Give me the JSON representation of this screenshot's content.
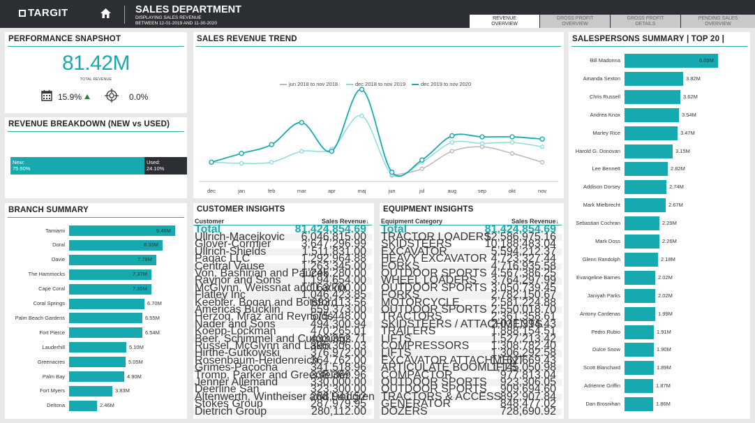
{
  "header": {
    "brand": "TARGIT",
    "title": "SALES DEPARTMENT",
    "subtitle_line1": "DISPLAYING SALES REVENUE",
    "subtitle_line2": "BETWEEN 12-01-2019 AND 11-30-2020",
    "tabs": [
      {
        "line1": "REVENUE",
        "line2": "OVERVIEW"
      },
      {
        "line1": "GROSS PROFIT",
        "line2": "OVERVIEW"
      },
      {
        "line1": "GROSS PROFIT",
        "line2": "DETAILS"
      },
      {
        "line1": "PENDING SALES",
        "line2": "OVERVIEW"
      }
    ]
  },
  "snapshot": {
    "title": "PERFORMANCE SNAPSHOT",
    "total": "81.42M",
    "total_label": "TOTAL REVENUE",
    "growth": "15.9%",
    "target": "0.0%"
  },
  "breakdown": {
    "title": "REVENUE BREAKDOWN (NEW vs USED)",
    "new_label": "New:",
    "new_value": "75.90%",
    "new_share": 0.759,
    "used_label": "Used:",
    "used_value": "24.10%"
  },
  "branch": {
    "title": "BRANCH SUMMARY",
    "items": [
      {
        "name": "Tamiami",
        "label": "9.46M",
        "value": 9.46
      },
      {
        "name": "Doral",
        "label": "8.33M",
        "value": 8.33
      },
      {
        "name": "Davie",
        "label": "7.78M",
        "value": 7.78
      },
      {
        "name": "The Hammocks",
        "label": "7.37M",
        "value": 7.37
      },
      {
        "name": "Cape Coral",
        "label": "7.35M",
        "value": 7.35
      },
      {
        "name": "Coral Springs",
        "label": "6.70M",
        "value": 6.7
      },
      {
        "name": "Palm Beach Gardens",
        "label": "6.55M",
        "value": 6.55
      },
      {
        "name": "Fort Pierce",
        "label": "6.54M",
        "value": 6.54
      },
      {
        "name": "Lauderhill",
        "label": "5.10M",
        "value": 5.1
      },
      {
        "name": "Greenacres",
        "label": "5.05M",
        "value": 5.05
      },
      {
        "name": "Palm Bay",
        "label": "4.90M",
        "value": 4.9
      },
      {
        "name": "Fort Myers",
        "label": "3.83M",
        "value": 3.83
      },
      {
        "name": "Deltona",
        "label": "2.46M",
        "value": 2.46
      }
    ]
  },
  "trend": {
    "title": "SALES REVENUE TREND",
    "colors": [
      "#b8b8b8",
      "#8fdcdc",
      "#16aab0"
    ]
  },
  "chart_data": {
    "type": "line",
    "title": "SALES REVENUE TREND",
    "categories": [
      "dec",
      "jan",
      "feb",
      "mar",
      "apr",
      "maj",
      "jun",
      "jul",
      "aug",
      "sep",
      "okt",
      "nov"
    ],
    "series": [
      {
        "name": "jun 2018 to nov 2018",
        "values": [
          null,
          null,
          null,
          null,
          null,
          null,
          5.9,
          6.2,
          7.0,
          7.2,
          6.9,
          6.5
        ]
      },
      {
        "name": "dec 2018 to nov 2019",
        "values": [
          6.5,
          6.45,
          6.5,
          7.0,
          7.1,
          8.6,
          5.95,
          6.5,
          7.4,
          7.35,
          7.4,
          7.2
        ]
      },
      {
        "name": "dec 2019 to nov 2020",
        "values": [
          6.5,
          6.9,
          7.3,
          8.3,
          7.0,
          9.8,
          6.05,
          6.6,
          7.7,
          7.65,
          7.65,
          7.55
        ]
      }
    ],
    "ylim": [
      5.5,
      10.5
    ]
  },
  "customers": {
    "title": "CUSTOMER INSIGHTS",
    "col1": "Customer",
    "col2": "Sales Revenue↓",
    "total_label": "Total",
    "total_value": "81,424,854.69",
    "rows": [
      [
        "Ullrich-Macejkovic",
        "6,046,815.00"
      ],
      [
        "Glover-Cormier",
        "3,647,296.99"
      ],
      [
        "Ullrich-Shields",
        "1,511,831.00"
      ],
      [
        "Paqac LLC",
        "1,292,964.88"
      ],
      [
        "Central Vause",
        "1,263,345.00"
      ],
      [
        "Von, Bashirian and Paucek",
        "1,245,280.00"
      ],
      [
        "Raynor and Sons",
        "1,194,654.00"
      ],
      [
        "McGlynn, Weissnat and Larkin",
        "1,163,700.00"
      ],
      [
        "Flatley Inc",
        "1,046,423.85"
      ],
      [
        "Keebler, Boqan and Botsford",
        "693,113.56"
      ],
      [
        "Americas Bucklin",
        "659,373.00"
      ],
      [
        "Herzog, Mraz and Reynolds",
        "575,448.00"
      ],
      [
        "Nader and Sons",
        "494,300.94"
      ],
      [
        "Koepp-Lockman",
        "470,265.01"
      ],
      [
        "Beer, Schimmel and Cummings",
        "433,352.71"
      ],
      [
        "Russel, McGlynn and Lakin",
        "395,306.03"
      ],
      [
        "Hirthe-Gutkowski",
        "376,972.00"
      ],
      [
        "Rosenbaum-Heidenreich",
        "364,762.00"
      ],
      [
        "Grimes-Pacocha",
        "341,518.96"
      ],
      [
        "Tromp, Parker and Greenfelder",
        "338,369.96"
      ],
      [
        "Jenner Allemand",
        "330,000.00"
      ],
      [
        "Deerline San",
        "323,300.00"
      ],
      [
        "Altenwerth, Wintheiser and Lindgren",
        "288,941.52"
      ],
      [
        "Stokes Group",
        "287,979.95"
      ],
      [
        "Dietrich Group",
        "280,112.00"
      ]
    ]
  },
  "equipment": {
    "title": "EQUIPMENT INSIGHTS",
    "col1": "Equipment Category",
    "col2": "Sales Revenue↓",
    "total_label": "Total",
    "total_value": "81,424,854.69",
    "rows": [
      [
        "TRACTOR LOADERS",
        "12,586,975.16"
      ],
      [
        "SKIDSTEERS",
        "10,188,483.04"
      ],
      [
        "EXCAVATOR",
        "5,594,212.37"
      ],
      [
        "HEAVY EXCAVATOR",
        "4,723,327.44"
      ],
      [
        "FORKS",
        "4,716,935.58"
      ],
      [
        "OUTDOOR SPORTS",
        "4,567,386.25"
      ],
      [
        "WHEEL LOADERS",
        "3,764,297.99"
      ],
      [
        "OUTDOOR SPORTS",
        "3,050,739.45"
      ],
      [
        "FORKS",
        "2,782,150.67"
      ],
      [
        "MOTORCYCLE",
        "2,581,224.88"
      ],
      [
        "OUTDOOR SPORTS",
        "2,550,018.70"
      ],
      [
        "TRACTORS",
        "2,361,358.61"
      ],
      [
        "SKIDSTEERS / ATTACHMENTS",
        "2,031,394.43"
      ],
      [
        "TRAILERS",
        "1,888,154.51"
      ],
      [
        "LIFTS",
        "1,527,213.42"
      ],
      [
        "COMPRESSORS",
        "1,308,782.40"
      ],
      [
        "LIFTS",
        "1,306,292.58"
      ],
      [
        "EXCAVATOR ATTACHMENT",
        "1,162,669.43"
      ],
      [
        "ARTICULATE BOOMLIFTS",
        "1,145,050.98"
      ],
      [
        "COMPACTOR",
        "977,813.04"
      ],
      [
        "OUTDOOR SPORTS",
        "923,306.05"
      ],
      [
        "OUTDOOR SPORTS",
        "909,694.60"
      ],
      [
        "TRACTORS & ACCESS.",
        "892,907.84"
      ],
      [
        "GENERATOR",
        "848,477.02"
      ],
      [
        "DOZERS",
        "728,690.92"
      ]
    ]
  },
  "salespersons": {
    "title": "SALESPERSONS SUMMARY  | TOP 20 |",
    "items": [
      {
        "name": "Bill Madonna",
        "label": "6.09M",
        "value": 6.09
      },
      {
        "name": "Amanda Sexton",
        "label": "3.82M",
        "value": 3.82
      },
      {
        "name": "Chris Russell",
        "label": "3.62M",
        "value": 3.62
      },
      {
        "name": "Andrea Knox",
        "label": "3.54M",
        "value": 3.54
      },
      {
        "name": "Marley Rice",
        "label": "3.47M",
        "value": 3.47
      },
      {
        "name": "Harold G. Donovan",
        "label": "3.15M",
        "value": 3.15
      },
      {
        "name": "Lee Bennett",
        "label": "2.82M",
        "value": 2.82
      },
      {
        "name": "Addison Dorsey",
        "label": "2.74M",
        "value": 2.74
      },
      {
        "name": "Mark Mielbrecht",
        "label": "2.67M",
        "value": 2.67
      },
      {
        "name": "Sebastian Cochran",
        "label": "2.29M",
        "value": 2.29
      },
      {
        "name": "Mark Doss",
        "label": "2.26M",
        "value": 2.26
      },
      {
        "name": "Glenn Randolph",
        "label": "2.18M",
        "value": 2.18
      },
      {
        "name": "Evangeline Barnes",
        "label": "2.02M",
        "value": 2.02
      },
      {
        "name": "Janiyah Parks",
        "label": "2.02M",
        "value": 2.02
      },
      {
        "name": "Antony Cardenas",
        "label": "1.99M",
        "value": 1.99
      },
      {
        "name": "Pedro Rubio",
        "label": "1.91M",
        "value": 1.91
      },
      {
        "name": "Dulce Snow",
        "label": "1.90M",
        "value": 1.9
      },
      {
        "name": "Scott Blanchard",
        "label": "1.89M",
        "value": 1.89
      },
      {
        "name": "Adrienne Griffin",
        "label": "1.87M",
        "value": 1.87
      },
      {
        "name": "Dan Brosnihan",
        "label": "1.86M",
        "value": 1.86
      }
    ]
  }
}
